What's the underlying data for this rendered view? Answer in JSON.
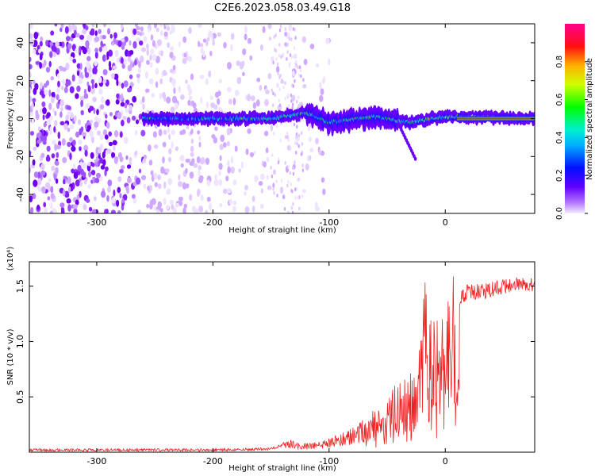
{
  "title": "C2E6.2023.058.03.49.G18",
  "chart_data": [
    {
      "type": "heatmap",
      "name": "spectrogram",
      "xlabel": "Height of straight line (km)",
      "ylabel": "Frequency (Hz)",
      "xlim": [
        -358,
        77
      ],
      "ylim": [
        -50,
        50
      ],
      "xticks": [
        -300,
        -200,
        -100,
        0
      ],
      "xtick_labels": [
        "-300",
        "-200",
        "-100",
        "0"
      ],
      "yticks": [
        -40,
        -20,
        0,
        20,
        40
      ],
      "ytick_labels": [
        "-40",
        "-20",
        "0",
        "20",
        "40"
      ],
      "colorbar": {
        "label": "Normalized spectral amplitude",
        "range": [
          0,
          1
        ],
        "ticks": [
          0,
          0.2,
          0.4,
          0.6,
          0.8
        ],
        "tick_labels": [
          "0.0",
          "0.2",
          "0.4",
          "0.6",
          "0.8"
        ],
        "colormap": [
          "#f0e6ff",
          "#7a00ff",
          "#0000ff",
          "#00e5ff",
          "#00ff00",
          "#ffff00",
          "#ff0000",
          "#ff00aa"
        ]
      },
      "features": {
        "noise_region_x": [
          -358,
          -120
        ],
        "signal_band_x": [
          -260,
          77
        ],
        "signal_center_hz": 0,
        "signal_drift_hz": [
          [
            -260,
            0
          ],
          [
            -150,
            0
          ],
          [
            -120,
            3
          ],
          [
            -100,
            -2
          ],
          [
            -60,
            1
          ],
          [
            -30,
            -2
          ],
          [
            0,
            1
          ],
          [
            77,
            0
          ]
        ],
        "strong_signal_x": [
          10,
          77
        ]
      }
    },
    {
      "type": "line",
      "name": "snr",
      "xlabel": "Height of straight line (km)",
      "ylabel": "SNR (10 * v/v)",
      "y_multiplier": "(x10⁴)",
      "xlim": [
        -358,
        77
      ],
      "ylim": [
        0,
        1.72
      ],
      "xticks": [
        -300,
        -200,
        -100,
        0
      ],
      "xtick_labels": [
        "-300",
        "-200",
        "-100",
        "0"
      ],
      "yticks": [
        0.5,
        1.0,
        1.5
      ],
      "ytick_labels": [
        "0.5",
        "1.0",
        "1.5"
      ],
      "series": [
        {
          "name": "SNR",
          "color": "#ee2222",
          "x": [
            -358,
            -300,
            -250,
            -200,
            -150,
            -135,
            -125,
            -110,
            -100,
            -90,
            -80,
            -70,
            -60,
            -50,
            -45,
            -40,
            -35,
            -30,
            -25,
            -20,
            -17,
            -15,
            -10,
            -5,
            0,
            5,
            10,
            13,
            20,
            30,
            40,
            50,
            60,
            77
          ],
          "y": [
            0.02,
            0.02,
            0.02,
            0.02,
            0.03,
            0.08,
            0.05,
            0.06,
            0.08,
            0.11,
            0.14,
            0.2,
            0.27,
            0.33,
            0.38,
            0.42,
            0.46,
            0.5,
            0.57,
            0.68,
            0.8,
            0.76,
            0.85,
            0.72,
            0.85,
            1.0,
            1.25,
            1.4,
            1.45,
            1.45,
            1.47,
            1.5,
            1.51,
            1.52
          ]
        }
      ]
    }
  ]
}
